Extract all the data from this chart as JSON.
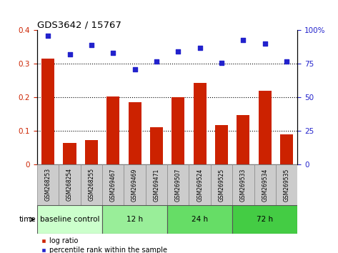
{
  "title": "GDS3642 / 15767",
  "categories": [
    "GSM268253",
    "GSM268254",
    "GSM268255",
    "GSM269467",
    "GSM269469",
    "GSM269471",
    "GSM269507",
    "GSM269524",
    "GSM269525",
    "GSM269533",
    "GSM269534",
    "GSM269535"
  ],
  "log_ratio": [
    0.315,
    0.065,
    0.072,
    0.202,
    0.185,
    0.112,
    0.2,
    0.243,
    0.117,
    0.147,
    0.22,
    0.09
  ],
  "percentile_rank": [
    96,
    82,
    89,
    83,
    71,
    77,
    84,
    87,
    76,
    93,
    90,
    77
  ],
  "bar_color": "#cc2200",
  "scatter_color": "#2222cc",
  "ylim_left": [
    0,
    0.4
  ],
  "ylim_right": [
    0,
    100
  ],
  "yticks_left": [
    0,
    0.1,
    0.2,
    0.3,
    0.4
  ],
  "yticks_right": [
    0,
    25,
    50,
    75,
    100
  ],
  "ytick_labels_left": [
    "0",
    "0.1",
    "0.2",
    "0.3",
    "0.4"
  ],
  "ytick_labels_right": [
    "0",
    "25",
    "50",
    "75",
    "100%"
  ],
  "groups": [
    {
      "label": "baseline control",
      "start": 0,
      "end": 3,
      "color": "#ccffcc"
    },
    {
      "label": "12 h",
      "start": 3,
      "end": 6,
      "color": "#99ee99"
    },
    {
      "label": "24 h",
      "start": 6,
      "end": 9,
      "color": "#66dd66"
    },
    {
      "label": "72 h",
      "start": 9,
      "end": 12,
      "color": "#44cc44"
    }
  ],
  "time_label": "time",
  "legend_log_ratio": "log ratio",
  "legend_percentile": "percentile rank within the sample",
  "dotted_lines": [
    0.1,
    0.2,
    0.3
  ],
  "background_plot": "#ffffff",
  "tick_area_bg": "#cccccc",
  "group_border_color": "#555555"
}
